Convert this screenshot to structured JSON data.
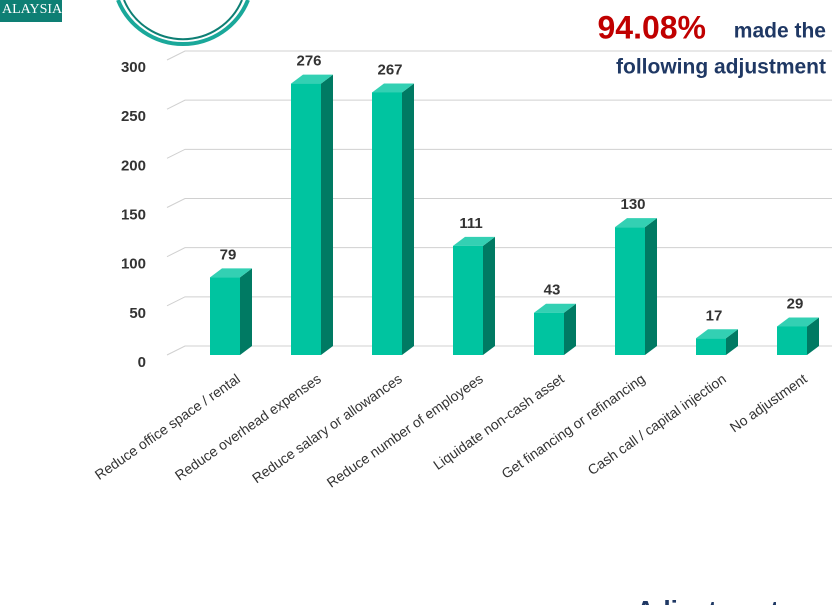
{
  "chart_data": {
    "type": "bar3d",
    "logo_text": "ALAYSIA",
    "title_highlight": "94.08%",
    "title_rest": "made the",
    "title_line2": "following adjustment",
    "footer_text": "Adjustment",
    "categories": [
      "Reduce office space / rental",
      "Reduce overhead expenses",
      "Reduce salary or allowances",
      "Reduce number of employees",
      "Liquidate non-cash asset",
      "Get financing or refinancing",
      "Cash call / capital injection",
      "No adjustment"
    ],
    "values": [
      79,
      276,
      267,
      111,
      43,
      130,
      17,
      29
    ],
    "color": "#00c4a0",
    "ylim": [
      0,
      300
    ],
    "yticks": [
      0,
      50,
      100,
      150,
      200,
      250,
      300
    ],
    "grid": true
  }
}
